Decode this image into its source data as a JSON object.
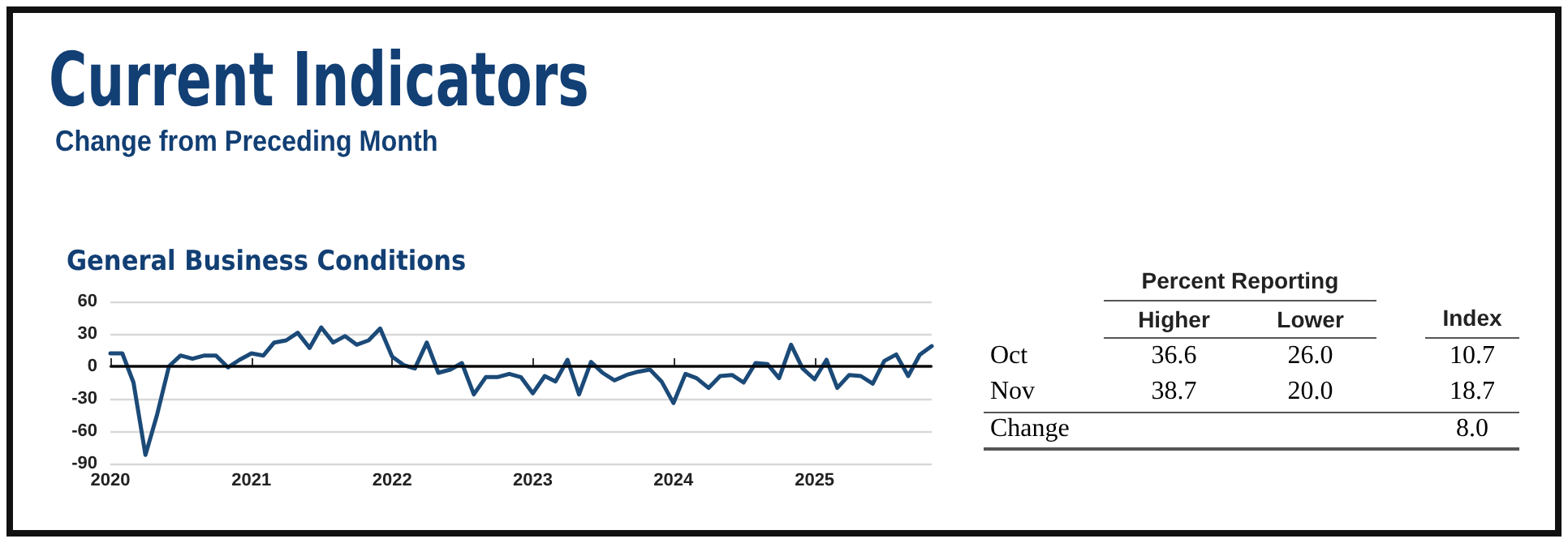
{
  "chart_data": [
    {
      "type": "other",
      "title": "Current Indicators",
      "subtitle": "Change from Preceding Month"
    },
    {
      "type": "line",
      "title": "General Business Conditions",
      "x": [
        "2020-01",
        "2020-02",
        "2020-03",
        "2020-04",
        "2020-05",
        "2020-06",
        "2020-07",
        "2020-08",
        "2020-09",
        "2020-10",
        "2020-11",
        "2020-12",
        "2021-01",
        "2021-02",
        "2021-03",
        "2021-04",
        "2021-05",
        "2021-06",
        "2021-07",
        "2021-08",
        "2021-09",
        "2021-10",
        "2021-11",
        "2021-12",
        "2022-01",
        "2022-02",
        "2022-03",
        "2022-04",
        "2022-05",
        "2022-06",
        "2022-07",
        "2022-08",
        "2022-09",
        "2022-10",
        "2022-11",
        "2022-12",
        "2023-01",
        "2023-02",
        "2023-03",
        "2023-04",
        "2023-05",
        "2023-06",
        "2023-07",
        "2023-08",
        "2023-09",
        "2023-10",
        "2023-11",
        "2023-12",
        "2024-01",
        "2024-02",
        "2024-03",
        "2024-04",
        "2024-05",
        "2024-06",
        "2024-07",
        "2024-08",
        "2024-09",
        "2024-10",
        "2024-11",
        "2024-12",
        "2025-01",
        "2025-02",
        "2025-03",
        "2025-04",
        "2025-05",
        "2025-06",
        "2025-07",
        "2025-08",
        "2025-09",
        "2025-10",
        "2025-11"
      ],
      "series": [
        {
          "color": "#1b4a78",
          "values": [
            12,
            12,
            -15,
            -82,
            -45,
            0,
            10,
            7,
            10,
            10,
            -1,
            6,
            12,
            10,
            22,
            24,
            31,
            17,
            36,
            22,
            28,
            20,
            24,
            35,
            9,
            1,
            -2,
            22,
            -6,
            -3,
            3,
            -26,
            -10,
            -10,
            -7,
            -10,
            -25,
            -9,
            -14,
            6,
            -26,
            4,
            -6,
            -13,
            -8,
            -5,
            -3,
            -14,
            -34,
            -7,
            -11,
            -20,
            -9,
            -8,
            -15,
            3,
            2,
            -11,
            20,
            -2,
            -12,
            6,
            -20,
            -8,
            -9,
            -16,
            5,
            11,
            -9,
            10.7,
            18.7
          ]
        }
      ],
      "xlim": [
        "2020-01",
        "2025-11"
      ],
      "xticks": [
        "2020",
        "2021",
        "2022",
        "2023",
        "2024",
        "2025"
      ],
      "ylim": [
        -90,
        60
      ],
      "yticks": [
        -90,
        -60,
        -30,
        0,
        30,
        60
      ],
      "ref_lines": [
        {
          "axis": "y",
          "value": 0,
          "color": "#000000"
        }
      ],
      "grid": "y",
      "legend": false,
      "marker": "none",
      "line_style": "solid"
    },
    {
      "type": "other",
      "title": "Percent Reporting",
      "categories": [
        "Higher",
        "Lower",
        "Index"
      ],
      "y_categories": [
        "Oct",
        "Nov",
        "Change"
      ],
      "cell_labels": [
        [
          "36.6",
          "26.0",
          "10.7"
        ],
        [
          "38.7",
          "20.0",
          "18.7"
        ],
        [
          null,
          null,
          "8.0"
        ]
      ]
    }
  ]
}
